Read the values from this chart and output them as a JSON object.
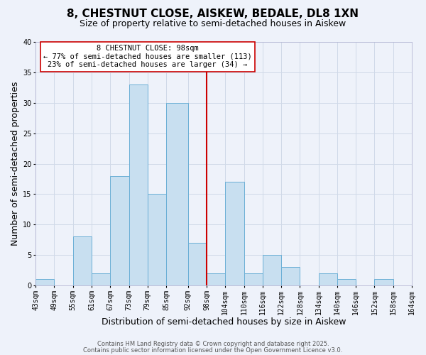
{
  "title": "8, CHESTNUT CLOSE, AISKEW, BEDALE, DL8 1XN",
  "subtitle": "Size of property relative to semi-detached houses in Aiskew",
  "xlabel": "Distribution of semi-detached houses by size in Aiskew",
  "ylabel": "Number of semi-detached properties",
  "bin_labels": [
    "43sqm",
    "49sqm",
    "55sqm",
    "61sqm",
    "67sqm",
    "73sqm",
    "79sqm",
    "85sqm",
    "92sqm",
    "98sqm",
    "104sqm",
    "110sqm",
    "116sqm",
    "122sqm",
    "128sqm",
    "134sqm",
    "140sqm",
    "146sqm",
    "152sqm",
    "158sqm",
    "164sqm"
  ],
  "bin_edges": [
    43,
    49,
    55,
    61,
    67,
    73,
    79,
    85,
    92,
    98,
    104,
    110,
    116,
    122,
    128,
    134,
    140,
    146,
    152,
    158,
    164
  ],
  "counts": [
    1,
    0,
    8,
    2,
    18,
    33,
    15,
    30,
    7,
    2,
    17,
    2,
    5,
    3,
    0,
    2,
    1,
    0,
    1,
    0,
    0
  ],
  "bar_color": "#c8dff0",
  "bar_edge_color": "#6aafd6",
  "property_line_x": 98,
  "property_line_color": "#cc0000",
  "annotation_line1": "8 CHESTNUT CLOSE: 98sqm",
  "annotation_line2": "← 77% of semi-detached houses are smaller (113)",
  "annotation_line3": "23% of semi-detached houses are larger (34) →",
  "annotation_box_color": "#ffffff",
  "annotation_box_edge_color": "#cc0000",
  "ylim": [
    0,
    40
  ],
  "yticks": [
    0,
    5,
    10,
    15,
    20,
    25,
    30,
    35,
    40
  ],
  "grid_color": "#d0d9e8",
  "background_color": "#eef2fa",
  "footer1": "Contains HM Land Registry data © Crown copyright and database right 2025.",
  "footer2": "Contains public sector information licensed under the Open Government Licence v3.0.",
  "title_fontsize": 11,
  "subtitle_fontsize": 9,
  "axis_label_fontsize": 9,
  "tick_fontsize": 7,
  "annotation_fontsize": 7.5,
  "footer_fontsize": 6
}
